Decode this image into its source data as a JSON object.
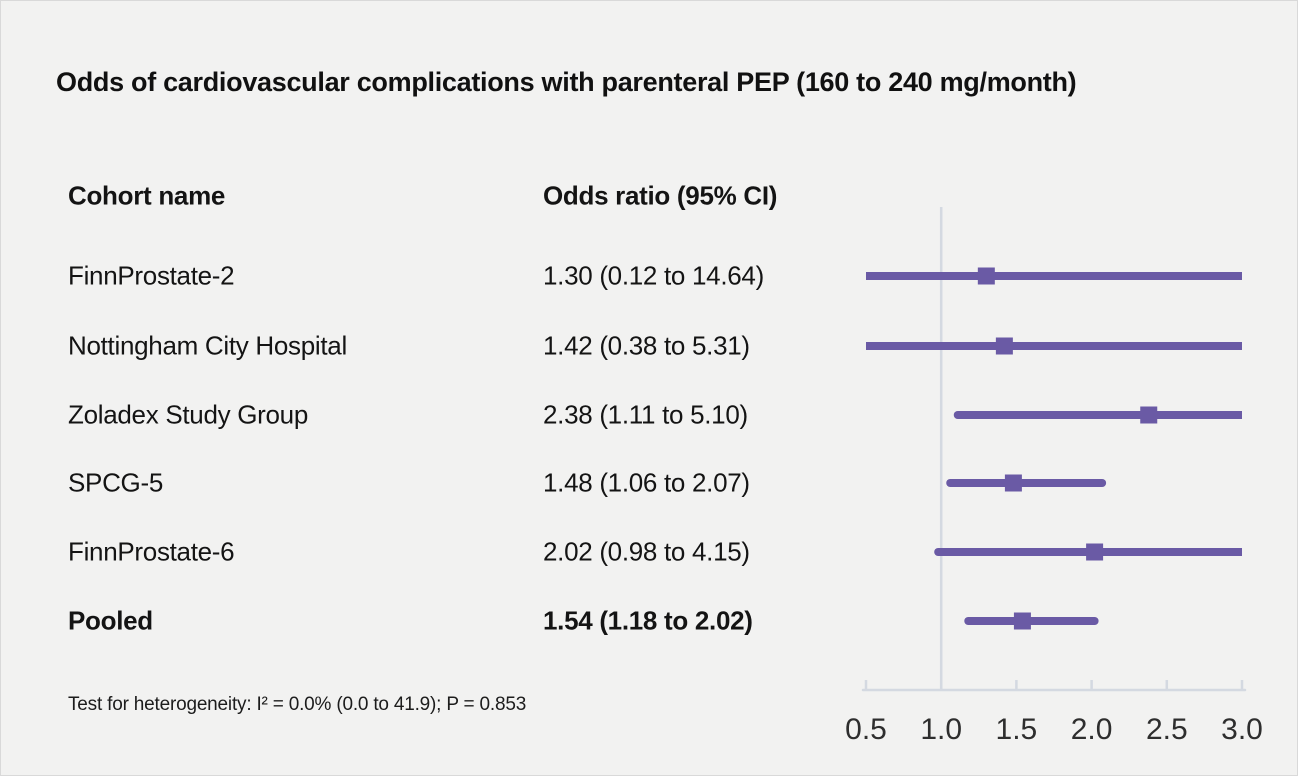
{
  "title": "Odds of cardiovascular complications with parenteral PEP (160 to 240 mg/month)",
  "table": {
    "cohort_header": "Cohort name",
    "or_header": "Odds ratio (95% CI)",
    "rows": [
      {
        "name": "FinnProstate-2",
        "or_label": "1.30 (0.12 to 14.64)"
      },
      {
        "name": "Nottingham City Hospital",
        "or_label": "1.42 (0.38 to 5.31)"
      },
      {
        "name": "Zoladex Study Group",
        "or_label": "2.38 (1.11 to 5.10)"
      },
      {
        "name": "SPCG-5",
        "or_label": "1.48 (1.06 to 2.07)"
      },
      {
        "name": "FinnProstate-6",
        "or_label": "2.02 (0.98 to 4.15)"
      },
      {
        "name": "Pooled",
        "or_label": "1.54 (1.18 to 2.02)"
      }
    ]
  },
  "footnote": "Test for heterogeneity: I² = 0.0% (0.0 to 41.9); P = 0.853",
  "chart_data": {
    "type": "forest",
    "title": "Odds of cardiovascular complications with parenteral PEP (160 to 240 mg/month)",
    "categories": [
      "FinnProstate-2",
      "Nottingham City Hospital",
      "Zoladex Study Group",
      "SPCG-5",
      "FinnProstate-6",
      "Pooled"
    ],
    "series": [
      {
        "name": "Odds ratio",
        "values": [
          1.3,
          1.42,
          2.38,
          1.48,
          2.02,
          1.54
        ]
      },
      {
        "name": "CI lower",
        "values": [
          0.12,
          0.38,
          1.11,
          1.06,
          0.98,
          1.18
        ]
      },
      {
        "name": "CI upper",
        "values": [
          14.64,
          5.31,
          5.1,
          2.07,
          4.15,
          2.02
        ]
      }
    ],
    "pooled_index": 5,
    "xlabel": "",
    "ylabel": "",
    "x_ticks": [
      0.5,
      1.0,
      1.5,
      2.0,
      2.5,
      3.0
    ],
    "xlim": [
      0.5,
      3.0
    ],
    "reference_line": 1.0,
    "grid": false,
    "legend_position": "none",
    "marker_color": "#6a5aa5",
    "axis_color": "#d4d9e1",
    "background_color": "#f2f2f1"
  }
}
